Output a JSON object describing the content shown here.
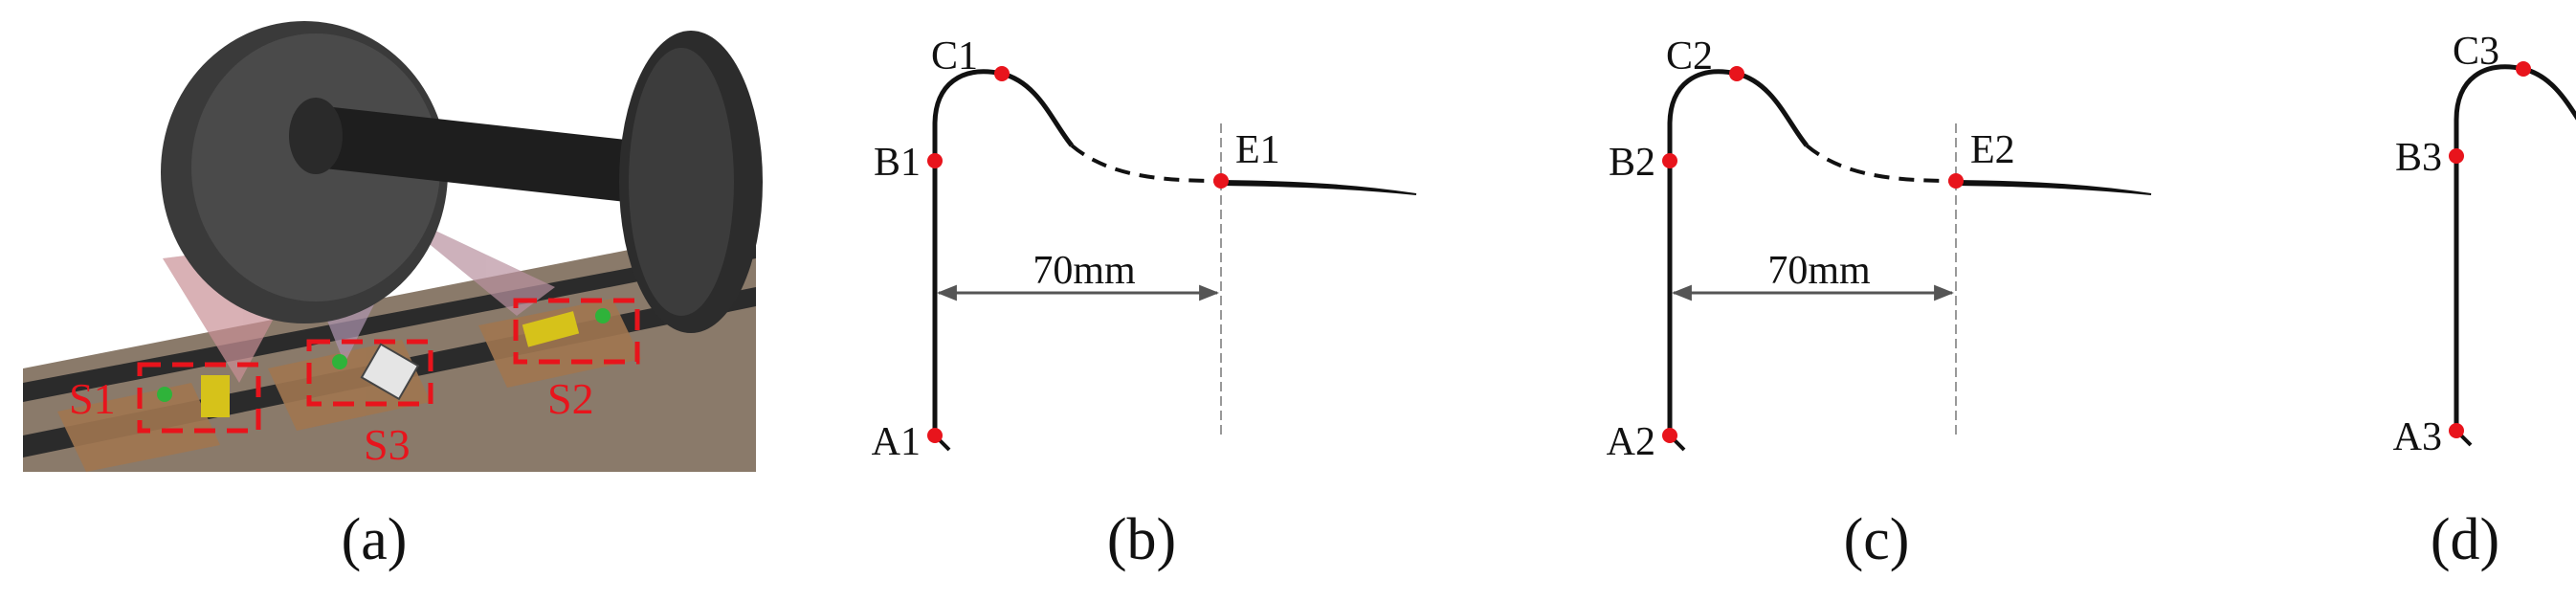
{
  "panels": [
    {
      "caption": "(a)",
      "sensor_labels": [
        "S1",
        "S3",
        "S2"
      ]
    },
    {
      "caption": "(b)",
      "points": {
        "C": "C1",
        "B": "B1",
        "E": "E1",
        "A": "A1"
      },
      "dimension": "70mm"
    },
    {
      "caption": "(c)",
      "points": {
        "C": "C2",
        "B": "B2",
        "E": "E2",
        "A": "A2"
      },
      "dimension": "70mm"
    },
    {
      "caption": "(d)",
      "points": {
        "C": "C3",
        "B": "B3",
        "A": "A3"
      }
    }
  ]
}
